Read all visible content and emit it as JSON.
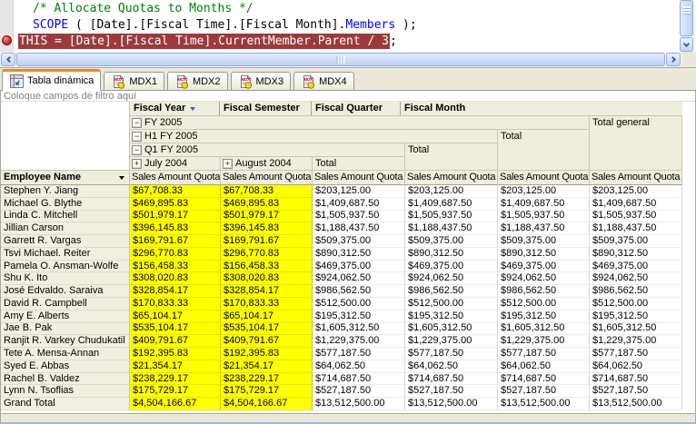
{
  "colors": {
    "highlight_yellow": "#FFFF00",
    "current_statement_bg": "#9C3A3A",
    "comment_green": "#008000",
    "keyword_blue": "#0000FF",
    "tab_accent_orange": "#E68B2C",
    "breakpoint_red": "#C03030"
  },
  "code_editor": {
    "lines": [
      {
        "indent": 2,
        "breakpoint": false,
        "current": false,
        "segments": [
          {
            "text": "/* Allocate Quotas to Months */",
            "style": "comment"
          }
        ]
      },
      {
        "indent": 2,
        "breakpoint": false,
        "current": false,
        "segments": [
          {
            "text": "SCOPE",
            "style": "keyword"
          },
          {
            "text": " ( [Date].[Fiscal Time].[Fiscal Month].",
            "style": "plain"
          },
          {
            "text": "Members",
            "style": "keyword"
          },
          {
            "text": " );",
            "style": "plain"
          }
        ]
      },
      {
        "indent": 0,
        "breakpoint": true,
        "current": true,
        "segments": [
          {
            "text": "THIS = [Date].[Fiscal Time].CurrentMember.Parent / 3",
            "style": "current"
          },
          {
            "text": ";",
            "style": "plain"
          }
        ]
      }
    ]
  },
  "tabs": [
    {
      "label": "Tabla dinámica",
      "icon": "pivot-table-icon",
      "active": true
    },
    {
      "label": "MDX1",
      "icon": "mdx-document-icon",
      "active": false
    },
    {
      "label": "MDX2",
      "icon": "mdx-document-icon",
      "active": false
    },
    {
      "label": "MDX3",
      "icon": "mdx-document-icon",
      "active": false
    },
    {
      "label": "MDX4",
      "icon": "mdx-document-icon",
      "active": false
    }
  ],
  "pivot": {
    "filter_hint": "Coloque campos de filtro aquí",
    "row_field": "Employee Name",
    "column_fields": [
      "Fiscal Year",
      "Fiscal Semester",
      "Fiscal Quarter",
      "Fiscal Month"
    ],
    "year_label": "FY 2005",
    "semester_label": "H1 FY 2005",
    "quarter_label": "Q1 FY 2005",
    "month_labels": [
      "July 2004",
      "August 2004"
    ],
    "total_label": "Total",
    "grand_total_column_label": "Total general",
    "measure_label": "Sales Amount Quota",
    "rows": [
      {
        "name": "Stephen Y. Jiang",
        "month_value": "$67,708.33",
        "total_value": "$203,125.00"
      },
      {
        "name": "Michael G. Blythe",
        "month_value": "$469,895.83",
        "total_value": "$1,409,687.50"
      },
      {
        "name": "Linda C. Mitchell",
        "month_value": "$501,979.17",
        "total_value": "$1,505,937.50"
      },
      {
        "name": "Jillian Carson",
        "month_value": "$396,145.83",
        "total_value": "$1,188,437.50"
      },
      {
        "name": "Garrett R. Vargas",
        "month_value": "$169,791.67",
        "total_value": "$509,375.00"
      },
      {
        "name": "Tsvi Michael. Reiter",
        "month_value": "$296,770.83",
        "total_value": "$890,312.50"
      },
      {
        "name": "Pamela O. Ansman-Wolfe",
        "month_value": "$156,458.33",
        "total_value": "$469,375.00"
      },
      {
        "name": "Shu K. Ito",
        "month_value": "$308,020.83",
        "total_value": "$924,062.50"
      },
      {
        "name": "José Edvaldo. Saraiva",
        "month_value": "$328,854.17",
        "total_value": "$986,562.50"
      },
      {
        "name": "David R. Campbell",
        "month_value": "$170,833.33",
        "total_value": "$512,500.00"
      },
      {
        "name": "Amy E. Alberts",
        "month_value": "$65,104.17",
        "total_value": "$195,312.50"
      },
      {
        "name": "Jae B. Pak",
        "month_value": "$535,104.17",
        "total_value": "$1,605,312.50"
      },
      {
        "name": "Ranjit R. Varkey Chudukatil",
        "month_value": "$409,791.67",
        "total_value": "$1,229,375.00"
      },
      {
        "name": "Tete A. Mensa-Annan",
        "month_value": "$192,395.83",
        "total_value": "$577,187.50"
      },
      {
        "name": "Syed E. Abbas",
        "month_value": "$21,354.17",
        "total_value": "$64,062.50"
      },
      {
        "name": "Rachel B. Valdez",
        "month_value": "$238,229.17",
        "total_value": "$714,687.50"
      },
      {
        "name": "Lynn N. Tsoflias",
        "month_value": "$175,729.17",
        "total_value": "$527,187.50"
      },
      {
        "name": "Grand Total",
        "month_value": "$4,504,166.67",
        "total_value": "$13,512,500.00",
        "is_grand_total": true
      }
    ]
  }
}
